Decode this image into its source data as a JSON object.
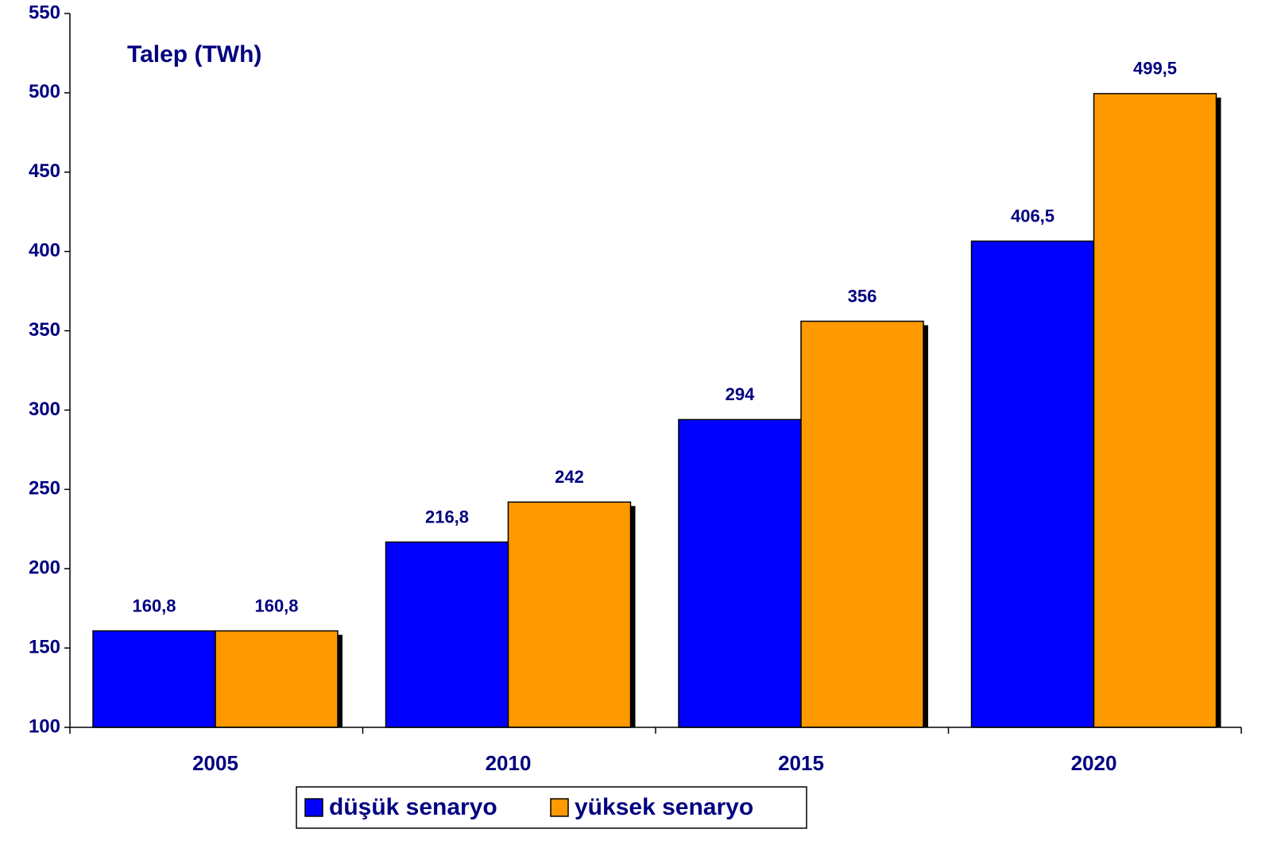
{
  "chart_data": {
    "type": "bar",
    "title": "Talep  (TWh)",
    "categories": [
      "2005",
      "2010",
      "2015",
      "2020"
    ],
    "series": [
      {
        "name": "düşük senaryo",
        "color": "#0000ff",
        "values": [
          160.8,
          216.8,
          294,
          406.5
        ],
        "value_labels": [
          "160,8",
          "216,8",
          "294",
          "406,5"
        ]
      },
      {
        "name": "yüksek senaryo",
        "color": "#ff9900",
        "values": [
          160.8,
          242,
          356,
          499.5
        ],
        "value_labels": [
          "160,8",
          "242",
          "356",
          "499,5"
        ]
      }
    ],
    "ylim": [
      100,
      550
    ],
    "yticks": [
      100,
      150,
      200,
      250,
      300,
      350,
      400,
      450,
      500,
      550
    ],
    "grid": false,
    "legend": "bottom"
  }
}
